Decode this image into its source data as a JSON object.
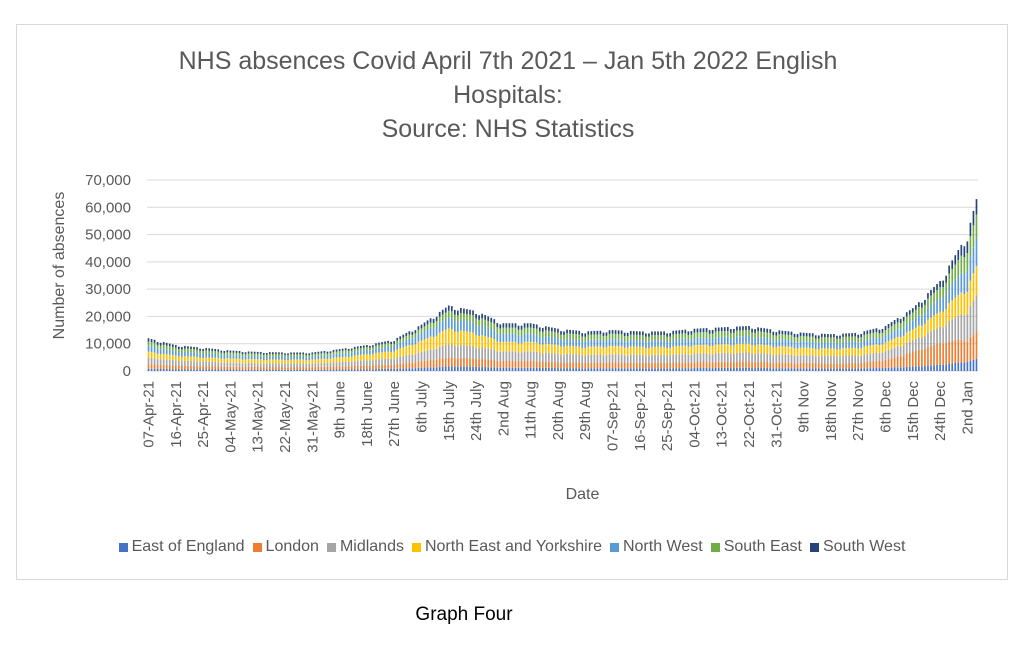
{
  "caption": "Graph Four",
  "chart_data": {
    "type": "bar",
    "stacked": true,
    "title": [
      "NHS absences Covid April 7th 2021 – Jan 5th 2022 English",
      "Hospitals:",
      "Source: NHS Statistics"
    ],
    "xlabel": "Date",
    "ylabel": "Number of absences",
    "ylim": [
      0,
      70000
    ],
    "yticks": [
      0,
      10000,
      20000,
      30000,
      40000,
      50000,
      60000,
      70000
    ],
    "ytick_labels": [
      "0",
      "10,000",
      "20,000",
      "30,000",
      "40,000",
      "50,000",
      "60,000",
      "70,000"
    ],
    "grid": true,
    "legend_position": "bottom",
    "x_start": "2021-04-07",
    "x_end": "2022-01-05",
    "tick_labels": [
      "07-Apr-21",
      "16-Apr-21",
      "25-Apr-21",
      "04-May-21",
      "13-May-21",
      "22-May-21",
      "31-May-21",
      "9th June",
      "18th June",
      "27th June",
      "6th July",
      "15th July",
      "24th July",
      "2nd Aug",
      "11th Aug",
      "20th Aug",
      "29th Aug",
      "07-Sep-21",
      "16-Sep-21",
      "25-Sep-21",
      "04-Oct-21",
      "13-Oct-21",
      "22-Oct-21",
      "31-Oct-21",
      "9th Nov",
      "18th Nov",
      "27th Nov",
      "6th Dec",
      "15th Dec",
      "24th Dec",
      "2nd Jan"
    ],
    "totals_by_date": {
      "dates": [
        "2021-04-07",
        "2021-04-16",
        "2021-04-25",
        "2021-05-04",
        "2021-05-13",
        "2021-05-22",
        "2021-05-31",
        "2021-06-09",
        "2021-06-18",
        "2021-06-27",
        "2021-07-06",
        "2021-07-15",
        "2021-07-24",
        "2021-08-02",
        "2021-08-11",
        "2021-08-20",
        "2021-08-29",
        "2021-09-07",
        "2021-09-16",
        "2021-09-25",
        "2021-10-04",
        "2021-10-13",
        "2021-10-22",
        "2021-10-31",
        "2021-11-09",
        "2021-11-18",
        "2021-11-27",
        "2021-12-06",
        "2021-12-15",
        "2021-12-24",
        "2022-01-02",
        "2022-01-05"
      ],
      "totals": [
        12000,
        9500,
        8500,
        7500,
        7000,
        6800,
        6800,
        8000,
        9500,
        11500,
        17000,
        24000,
        22000,
        17500,
        17500,
        15500,
        14500,
        15000,
        14500,
        14500,
        15500,
        16000,
        16500,
        15000,
        14000,
        13500,
        14000,
        16500,
        23000,
        33000,
        50000,
        63000
      ]
    },
    "series": [
      {
        "name": "East of England",
        "color": "#4472c4",
        "share": [
          0.07,
          0.07,
          0.07,
          0.07,
          0.07,
          0.07,
          0.07,
          0.07,
          0.07,
          0.07,
          0.07,
          0.07,
          0.07,
          0.07,
          0.07,
          0.07,
          0.07,
          0.07,
          0.07,
          0.07,
          0.07,
          0.07,
          0.07,
          0.07,
          0.07,
          0.07,
          0.07,
          0.07,
          0.07,
          0.07,
          0.07,
          0.07
        ]
      },
      {
        "name": "London",
        "color": "#ed7d31",
        "share": [
          0.14,
          0.14,
          0.14,
          0.14,
          0.14,
          0.14,
          0.14,
          0.14,
          0.14,
          0.14,
          0.14,
          0.14,
          0.14,
          0.14,
          0.14,
          0.14,
          0.14,
          0.14,
          0.14,
          0.14,
          0.14,
          0.14,
          0.14,
          0.14,
          0.14,
          0.14,
          0.14,
          0.18,
          0.24,
          0.24,
          0.16,
          0.16
        ]
      },
      {
        "name": "Midlands",
        "color": "#a5a5a5",
        "share": [
          0.2,
          0.2,
          0.2,
          0.2,
          0.2,
          0.2,
          0.2,
          0.2,
          0.2,
          0.2,
          0.2,
          0.2,
          0.2,
          0.2,
          0.2,
          0.2,
          0.2,
          0.2,
          0.2,
          0.2,
          0.2,
          0.2,
          0.2,
          0.2,
          0.2,
          0.2,
          0.2,
          0.19,
          0.18,
          0.18,
          0.21,
          0.21
        ]
      },
      {
        "name": "North East and Yorkshire",
        "color": "#ffc000",
        "share": [
          0.18,
          0.18,
          0.18,
          0.2,
          0.2,
          0.2,
          0.2,
          0.22,
          0.24,
          0.24,
          0.24,
          0.24,
          0.22,
          0.2,
          0.2,
          0.2,
          0.2,
          0.2,
          0.2,
          0.2,
          0.2,
          0.2,
          0.2,
          0.2,
          0.2,
          0.2,
          0.2,
          0.19,
          0.17,
          0.17,
          0.17,
          0.17
        ]
      },
      {
        "name": "North West",
        "color": "#5b9bd5",
        "share": [
          0.18,
          0.18,
          0.18,
          0.17,
          0.17,
          0.17,
          0.17,
          0.17,
          0.17,
          0.17,
          0.17,
          0.17,
          0.17,
          0.17,
          0.17,
          0.17,
          0.17,
          0.17,
          0.17,
          0.17,
          0.17,
          0.17,
          0.17,
          0.17,
          0.17,
          0.17,
          0.17,
          0.16,
          0.15,
          0.15,
          0.16,
          0.16
        ]
      },
      {
        "name": "South East",
        "color": "#70ad47",
        "share": [
          0.13,
          0.13,
          0.13,
          0.12,
          0.12,
          0.12,
          0.12,
          0.11,
          0.1,
          0.1,
          0.1,
          0.1,
          0.12,
          0.13,
          0.13,
          0.13,
          0.13,
          0.13,
          0.13,
          0.13,
          0.13,
          0.13,
          0.13,
          0.13,
          0.13,
          0.13,
          0.13,
          0.12,
          0.12,
          0.12,
          0.14,
          0.14
        ]
      },
      {
        "name": "South West",
        "color": "#264478",
        "share": [
          0.1,
          0.1,
          0.1,
          0.1,
          0.1,
          0.1,
          0.1,
          0.09,
          0.08,
          0.08,
          0.08,
          0.08,
          0.08,
          0.09,
          0.09,
          0.09,
          0.09,
          0.09,
          0.09,
          0.09,
          0.09,
          0.09,
          0.09,
          0.09,
          0.09,
          0.09,
          0.09,
          0.09,
          0.07,
          0.07,
          0.09,
          0.09
        ]
      }
    ]
  }
}
